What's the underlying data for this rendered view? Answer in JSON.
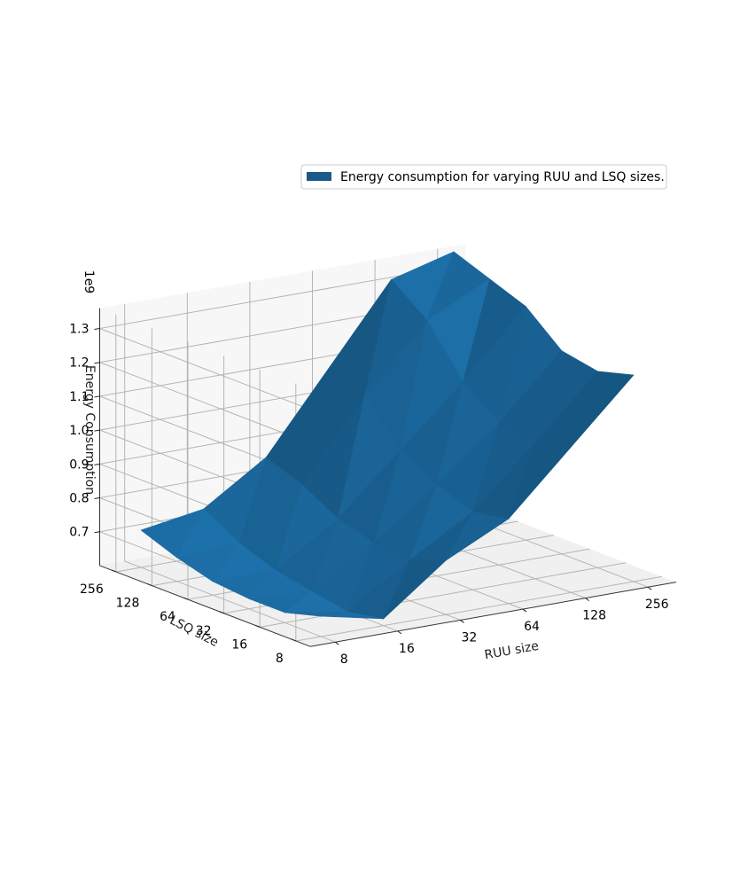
{
  "chart_data": {
    "type": "surface",
    "title": "",
    "xlabel": "RUU size",
    "ylabel": "LSQ size",
    "zlabel": "Energy Consumption",
    "z_offset_label": "1e9",
    "x_ticks": [
      "8",
      "16",
      "32",
      "64",
      "128",
      "256"
    ],
    "y_ticks": [
      "8",
      "16",
      "32",
      "64",
      "128",
      "256"
    ],
    "z_ticks": [
      "0.7",
      "0.8",
      "0.9",
      "1.0",
      "1.1",
      "1.2",
      "1.3"
    ],
    "zlim": [
      0.6,
      1.36
    ],
    "legend": {
      "label": "Energy consumption for varying RUU and LSQ sizes.",
      "placement": "top-right",
      "color": "#1a5a8a"
    },
    "series": [
      {
        "name": "Energy consumption for varying RUU and LSQ sizes.",
        "x": [
          8,
          16,
          32,
          64,
          128,
          256
        ],
        "y": [
          8,
          16,
          32,
          64,
          128,
          256
        ],
        "z": [
          [
            0.66,
            0.62,
            0.76,
            0.85,
            1.03,
            1.21
          ],
          [
            0.63,
            0.6,
            0.72,
            0.83,
            1.0,
            1.18
          ],
          [
            0.63,
            0.62,
            0.73,
            0.87,
            1.02,
            1.2
          ],
          [
            0.64,
            0.64,
            0.76,
            0.93,
            1.1,
            1.29
          ],
          [
            0.67,
            0.68,
            0.82,
            1.05,
            1.24,
            1.33
          ],
          [
            0.71,
            0.74,
            0.86,
            1.09,
            1.32,
            1.37
          ]
        ]
      }
    ],
    "surface_color": "#1f77b4",
    "grid": true
  }
}
